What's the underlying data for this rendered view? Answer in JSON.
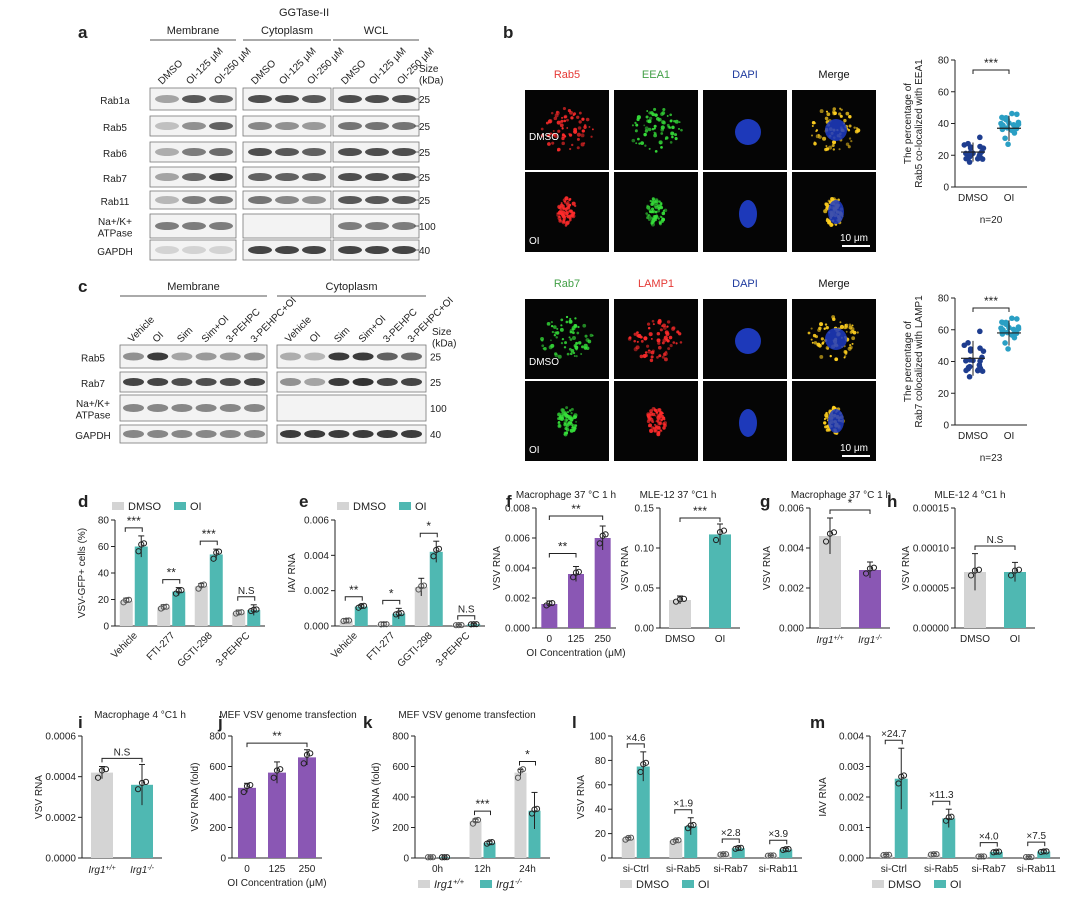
{
  "blot_a": {
    "letter": "a",
    "enzyme": "GGTase-II",
    "groups": [
      "Membrane",
      "Cytoplasm",
      "WCL"
    ],
    "lanes": [
      "DMSO",
      "OI-125 μM",
      "OI-250 μM"
    ],
    "size_header": "Size\n(kDa)",
    "rows": [
      "Rab1a",
      "Rab5",
      "Rab6",
      "Rab7",
      "Rab11",
      "Na+/K+\nATPase",
      "GAPDH"
    ],
    "sizes": [
      "25",
      "25",
      "25",
      "25",
      "25",
      "100",
      "40"
    ]
  },
  "blot_c": {
    "letter": "c",
    "groups": [
      "Membrane",
      "Cytoplasm"
    ],
    "lanes": [
      "Vehicle",
      "OI",
      "Sim",
      "Sim+OI",
      "3-PEHPC",
      "3-PEHPC+OI"
    ],
    "size_header": "Size\n(kDa)",
    "rows": [
      "Rab5",
      "Rab7",
      "Na+/K+\nATPase",
      "GAPDH"
    ],
    "sizes": [
      "25",
      "25",
      "100",
      "40"
    ]
  },
  "micro_b": {
    "letter": "b",
    "top_headers": [
      "Rab5",
      "EEA1",
      "DAPI",
      "Merge"
    ],
    "top_colors": [
      "#e53935",
      "#43a047",
      "#1e3a9e",
      "#111111"
    ],
    "bottom_headers": [
      "Rab7",
      "LAMP1",
      "DAPI",
      "Merge"
    ],
    "bottom_colors": [
      "#43a047",
      "#e53935",
      "#1e3a9e",
      "#111111"
    ],
    "row_labels": [
      "DMSO",
      "OI"
    ],
    "scale_bar": "10 μm"
  },
  "chart_data": [
    {
      "id": "b1",
      "type": "scatter",
      "ylabel": "The percentage of\nRab5 co-localized with EEA1",
      "categories": [
        "DMSO",
        "OI"
      ],
      "ylim": [
        0,
        80
      ],
      "yticks": [
        0,
        20,
        40,
        60,
        80
      ],
      "means": [
        22,
        37
      ],
      "sd": [
        6,
        8
      ],
      "n_label": "n=20",
      "sig": "***"
    },
    {
      "id": "b2",
      "type": "scatter",
      "ylabel": "The percentage of\nRab7 colocalized with LAMP1",
      "categories": [
        "DMSO",
        "OI"
      ],
      "ylim": [
        0,
        80
      ],
      "yticks": [
        0,
        20,
        40,
        60,
        80
      ],
      "means": [
        42,
        58
      ],
      "sd": [
        11,
        8
      ],
      "n_label": "n=23",
      "sig": "***"
    },
    {
      "id": "d",
      "letter": "d",
      "type": "bar",
      "legend": [
        "DMSO",
        "OI"
      ],
      "ylabel": "VSV-GFP+ cells (%)",
      "categories": [
        "Vehicle",
        "FTI-277",
        "GGTI-298",
        "3-PEHPC"
      ],
      "ylim": [
        0,
        80
      ],
      "yticks": [
        0,
        20,
        40,
        60,
        80
      ],
      "series": [
        {
          "name": "DMSO",
          "values": [
            19,
            14,
            30,
            10
          ],
          "err": [
            2,
            2,
            2,
            2
          ]
        },
        {
          "name": "OI",
          "values": [
            60,
            26,
            54,
            12
          ],
          "err": [
            8,
            3,
            4,
            4
          ]
        }
      ],
      "sig": [
        "***",
        "**",
        "***",
        "N.S"
      ]
    },
    {
      "id": "e",
      "letter": "e",
      "type": "bar",
      "legend": [
        "DMSO",
        "OI"
      ],
      "ylabel": "IAV RNA",
      "categories": [
        "Vehicle",
        "FTI-277",
        "GGTI-298",
        "3-PEHPC"
      ],
      "ylim": [
        0,
        0.006
      ],
      "yticks": [
        "0.000",
        "0.002",
        "0.004",
        "0.006"
      ],
      "series": [
        {
          "name": "DMSO",
          "values": [
            0.0003,
            0.0001,
            0.0022,
            5e-05
          ],
          "err": [
            0.0001,
            0.0001,
            0.0005,
            2e-05
          ]
        },
        {
          "name": "OI",
          "values": [
            0.0011,
            0.0007,
            0.0042,
            0.0001
          ],
          "err": [
            0.0001,
            0.0003,
            0.0006,
            3e-05
          ]
        }
      ],
      "sig": [
        "**",
        "*",
        "*",
        "N.S"
      ]
    },
    {
      "id": "f1",
      "letter": "f",
      "type": "bar",
      "title": "Macrophage  37 °C 1 h",
      "ylabel": "VSV RNA",
      "xlabel": "OI Concentration (μM)",
      "categories": [
        "0",
        "125",
        "250"
      ],
      "ylim": [
        0,
        0.008
      ],
      "yticks": [
        "0.000",
        "0.002",
        "0.004",
        "0.006",
        "0.008"
      ],
      "series": [
        {
          "name": "OI",
          "values": [
            0.0016,
            0.0036,
            0.006
          ],
          "err": [
            0.0002,
            0.0005,
            0.0008
          ]
        }
      ],
      "sig": [
        "**",
        "**"
      ]
    },
    {
      "id": "f2",
      "type": "bar",
      "title": "MLE-12 37 °C1 h",
      "ylabel": "VSV RNA",
      "categories": [
        "DMSO",
        "OI"
      ],
      "ylim": [
        0,
        0.15
      ],
      "yticks": [
        "0.00",
        "0.05",
        "0.10",
        "0.15"
      ],
      "series": [
        {
          "name": "VSV",
          "values": [
            0.035,
            0.117
          ],
          "err": [
            0.005,
            0.013
          ]
        }
      ],
      "sig": [
        "***"
      ]
    },
    {
      "id": "g",
      "letter": "g",
      "type": "bar",
      "title": "Macrophage 37 °C 1 h",
      "ylabel": "VSV RNA",
      "categories": [
        "Irg1+/+",
        "Irg1-/-"
      ],
      "ylim": [
        0,
        0.006
      ],
      "yticks": [
        "0.000",
        "0.002",
        "0.004",
        "0.006"
      ],
      "series": [
        {
          "name": "VSV",
          "values": [
            0.0046,
            0.0029
          ],
          "err": [
            0.0009,
            0.0004
          ]
        }
      ],
      "sig": [
        "*"
      ]
    },
    {
      "id": "h",
      "letter": "h",
      "type": "bar",
      "title": "MLE-12 4 °C1 h",
      "ylabel": "VSV RNA",
      "categories": [
        "DMSO",
        "OI"
      ],
      "ylim": [
        0,
        0.00015
      ],
      "yticks": [
        "0.00000",
        "0.00005",
        "0.00010",
        "0.00015"
      ],
      "series": [
        {
          "name": "VSV",
          "values": [
            7e-05,
            7e-05
          ],
          "err": [
            2.3e-05,
            1.2e-05
          ]
        }
      ],
      "sig": [
        "N.S"
      ]
    },
    {
      "id": "i",
      "letter": "i",
      "type": "bar",
      "title": "Macrophage 4 °C1 h",
      "ylabel": "VSV RNA",
      "categories": [
        "Irg1+/+",
        "Irg1-/-"
      ],
      "ylim": [
        0,
        0.0006
      ],
      "yticks": [
        "0.0000",
        "0.0002",
        "0.0004",
        "0.0006"
      ],
      "series": [
        {
          "name": "VSV",
          "values": [
            0.00042,
            0.00036
          ],
          "err": [
            3e-05,
            0.0001
          ]
        }
      ],
      "sig": [
        "N.S"
      ]
    },
    {
      "id": "j",
      "letter": "j",
      "type": "bar",
      "title": "MEF VSV genome transfection",
      "ylabel": "VSV RNA (fold)",
      "xlabel": "OI Concentration (μM)",
      "categories": [
        "0",
        "125",
        "250"
      ],
      "ylim": [
        0,
        800
      ],
      "yticks": [
        0,
        200,
        400,
        600,
        800
      ],
      "series": [
        {
          "name": "VSV",
          "values": [
            460,
            560,
            660
          ],
          "err": [
            30,
            70,
            50
          ]
        }
      ],
      "sig": [
        "**"
      ]
    },
    {
      "id": "k",
      "letter": "k",
      "type": "bar",
      "title": "MEF VSV genome transfection",
      "ylabel": "VSV RNA (fold)",
      "legend": [
        "Irg1+/+",
        "Irg1-/-"
      ],
      "categories": [
        "0h",
        "12h",
        "24h"
      ],
      "ylim": [
        0,
        800
      ],
      "yticks": [
        0,
        200,
        400,
        600,
        800
      ],
      "series": [
        {
          "name": "Irg1+/+",
          "values": [
            5,
            240,
            560
          ],
          "err": [
            2,
            15,
            20
          ]
        },
        {
          "name": "Irg1-/-",
          "values": [
            5,
            100,
            310
          ],
          "err": [
            2,
            10,
            120
          ]
        }
      ],
      "sig": [
        "",
        "***",
        "*"
      ]
    },
    {
      "id": "l",
      "letter": "l",
      "type": "bar",
      "ylabel": "VSV RNA",
      "legend": [
        "DMSO",
        "OI"
      ],
      "categories": [
        "si-Ctrl",
        "si-Rab5",
        "si-Rab7",
        "si-Rab11"
      ],
      "ylim": [
        0,
        100
      ],
      "yticks": [
        0,
        20,
        40,
        60,
        80,
        100
      ],
      "series": [
        {
          "name": "DMSO",
          "values": [
            16,
            14,
            3,
            2
          ],
          "err": [
            1,
            1,
            0.5,
            0.3
          ]
        },
        {
          "name": "OI",
          "values": [
            75,
            26,
            8,
            7
          ],
          "err": [
            12,
            7,
            1,
            1
          ]
        }
      ],
      "sig": [
        "×4.6",
        "×1.9",
        "×2.8",
        "×3.9"
      ]
    },
    {
      "id": "m",
      "letter": "m",
      "type": "bar",
      "ylabel": "IAV RNA",
      "legend": [
        "DMSO",
        "OI"
      ],
      "categories": [
        "si-Ctrl",
        "si-Rab5",
        "si-Rab7",
        "si-Rab11"
      ],
      "ylim": [
        0,
        0.004
      ],
      "yticks": [
        "0.000",
        "0.001",
        "0.002",
        "0.003",
        "0.004"
      ],
      "series": [
        {
          "name": "DMSO",
          "values": [
            0.0001,
            0.00012,
            5e-05,
            3e-05
          ],
          "err": [
            2e-05,
            3e-05,
            1e-05,
            1e-05
          ]
        },
        {
          "name": "OI",
          "values": [
            0.0026,
            0.0013,
            0.0002,
            0.00021
          ],
          "err": [
            0.001,
            0.0003,
            4e-05,
            5e-05
          ]
        }
      ],
      "sig": [
        "×24.7",
        "×11.3",
        "×4.0",
        "×7.5"
      ]
    }
  ],
  "colors": {
    "gray": "#d4d4d4",
    "teal": "#4fb8b2",
    "purple": "#8a57b4",
    "dot_dark": "#1e3d8f",
    "dot_light": "#2a9fc4"
  }
}
